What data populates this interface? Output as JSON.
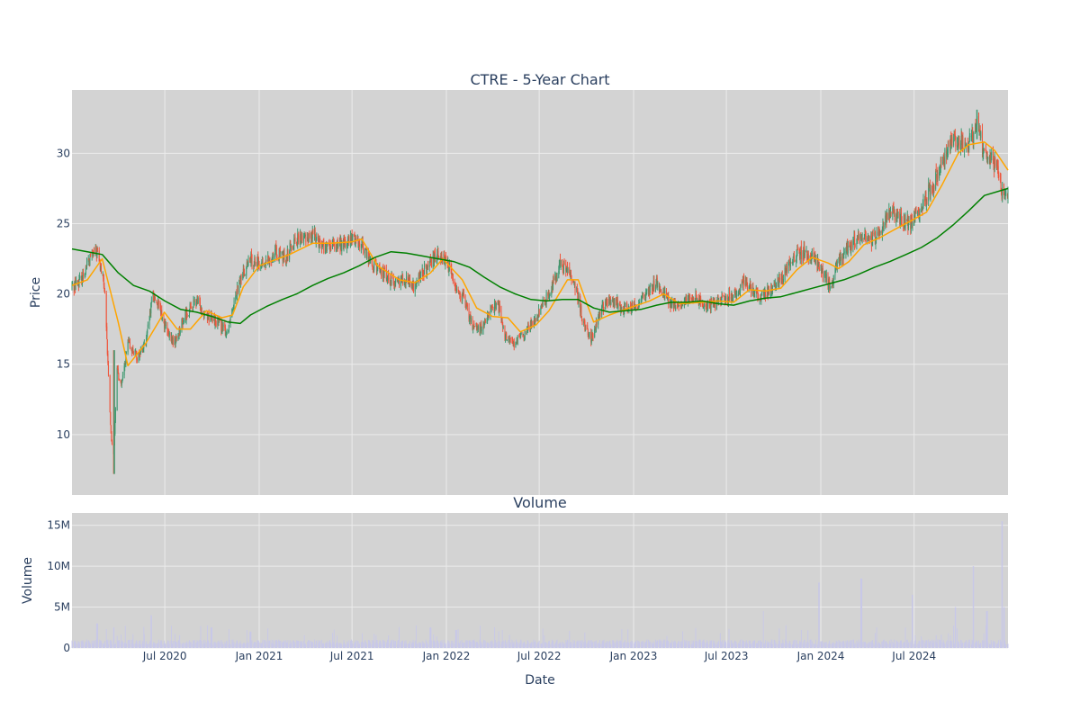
{
  "chart_data": [
    {
      "type": "candlestick",
      "title": "CTRE - 5-Year Chart",
      "ylabel": "Price",
      "x_range": [
        "2020-01-02",
        "2024-12-31"
      ],
      "ylim": [
        5.7,
        34.5
      ],
      "y_ticks": [
        10,
        15,
        20,
        25,
        30
      ],
      "y_tick_labels": [
        "10",
        "15",
        "20",
        "25",
        "30"
      ],
      "grid": true,
      "colors": {
        "increasing": "#3d9970",
        "decreasing": "#ef553b",
        "ma_short": "#ffa500",
        "ma_long": "#008000",
        "plot_bg": "#d3d3d3",
        "grid": "#e6e6e6"
      },
      "price_anchors": [
        [
          "2020-01-02",
          20.5
        ],
        [
          "2020-01-20",
          21.0
        ],
        [
          "2020-02-05",
          22.5
        ],
        [
          "2020-02-20",
          23.0
        ],
        [
          "2020-03-05",
          20.5
        ],
        [
          "2020-03-12",
          15.0
        ],
        [
          "2020-03-18",
          10.0
        ],
        [
          "2020-03-23",
          8.5
        ],
        [
          "2020-03-30",
          14.5
        ],
        [
          "2020-04-08",
          13.5
        ],
        [
          "2020-04-20",
          16.5
        ],
        [
          "2020-05-08",
          15.5
        ],
        [
          "2020-05-25",
          16.5
        ],
        [
          "2020-06-08",
          20.0
        ],
        [
          "2020-06-20",
          19.0
        ],
        [
          "2020-07-08",
          17.0
        ],
        [
          "2020-07-20",
          16.5
        ],
        [
          "2020-08-10",
          18.5
        ],
        [
          "2020-09-01",
          19.5
        ],
        [
          "2020-09-20",
          18.5
        ],
        [
          "2020-10-12",
          18.0
        ],
        [
          "2020-10-30",
          17.2
        ],
        [
          "2020-11-15",
          20.0
        ],
        [
          "2020-12-01",
          21.5
        ],
        [
          "2020-12-15",
          22.5
        ],
        [
          "2021-01-10",
          22.0
        ],
        [
          "2021-02-01",
          23.0
        ],
        [
          "2021-02-20",
          22.5
        ],
        [
          "2021-03-10",
          23.8
        ],
        [
          "2021-04-01",
          24.0
        ],
        [
          "2021-04-20",
          24.2
        ],
        [
          "2021-05-10",
          23.2
        ],
        [
          "2021-06-01",
          23.5
        ],
        [
          "2021-06-20",
          23.6
        ],
        [
          "2021-07-05",
          24.0
        ],
        [
          "2021-07-20",
          23.5
        ],
        [
          "2021-08-10",
          22.0
        ],
        [
          "2021-09-01",
          21.5
        ],
        [
          "2021-09-20",
          20.8
        ],
        [
          "2021-10-10",
          21.2
        ],
        [
          "2021-10-30",
          20.5
        ],
        [
          "2021-11-15",
          21.5
        ],
        [
          "2021-12-01",
          22.0
        ],
        [
          "2021-12-15",
          23.0
        ],
        [
          "2022-01-05",
          22.0
        ],
        [
          "2022-01-20",
          20.5
        ],
        [
          "2022-02-05",
          19.5
        ],
        [
          "2022-02-20",
          17.8
        ],
        [
          "2022-03-10",
          17.5
        ],
        [
          "2022-03-25",
          18.5
        ],
        [
          "2022-04-10",
          19.5
        ],
        [
          "2022-04-25",
          17.0
        ],
        [
          "2022-05-12",
          16.5
        ],
        [
          "2022-05-30",
          17.0
        ],
        [
          "2022-06-15",
          17.8
        ],
        [
          "2022-07-05",
          19.0
        ],
        [
          "2022-07-25",
          20.5
        ],
        [
          "2022-08-10",
          22.0
        ],
        [
          "2022-08-25",
          21.8
        ],
        [
          "2022-09-10",
          20.5
        ],
        [
          "2022-09-25",
          18.0
        ],
        [
          "2022-10-10",
          16.8
        ],
        [
          "2022-10-25",
          18.5
        ],
        [
          "2022-11-10",
          19.5
        ],
        [
          "2022-11-30",
          19.3
        ],
        [
          "2022-12-15",
          19.0
        ],
        [
          "2023-01-10",
          19.2
        ],
        [
          "2023-02-01",
          20.3
        ],
        [
          "2023-02-15",
          20.8
        ],
        [
          "2023-03-10",
          19.5
        ],
        [
          "2023-03-25",
          19.0
        ],
        [
          "2023-04-15",
          19.5
        ],
        [
          "2023-05-01",
          19.8
        ],
        [
          "2023-05-20",
          19.0
        ],
        [
          "2023-06-05",
          19.3
        ],
        [
          "2023-06-25",
          19.6
        ],
        [
          "2023-07-20",
          20.0
        ],
        [
          "2023-08-05",
          21.0
        ],
        [
          "2023-08-20",
          20.2
        ],
        [
          "2023-09-10",
          19.8
        ],
        [
          "2023-09-30",
          20.5
        ],
        [
          "2023-10-15",
          21.0
        ],
        [
          "2023-10-30",
          22.0
        ],
        [
          "2023-11-15",
          22.8
        ],
        [
          "2023-12-01",
          23.0
        ],
        [
          "2023-12-15",
          22.6
        ],
        [
          "2024-01-05",
          21.5
        ],
        [
          "2024-01-20",
          20.5
        ],
        [
          "2024-02-01",
          22.0
        ],
        [
          "2024-02-20",
          23.0
        ],
        [
          "2024-03-10",
          24.0
        ],
        [
          "2024-03-25",
          24.2
        ],
        [
          "2024-04-10",
          23.7
        ],
        [
          "2024-04-25",
          24.5
        ],
        [
          "2024-05-10",
          25.5
        ],
        [
          "2024-05-25",
          25.7
        ],
        [
          "2024-06-10",
          25.2
        ],
        [
          "2024-06-25",
          25.0
        ],
        [
          "2024-07-10",
          25.8
        ],
        [
          "2024-07-25",
          27.0
        ],
        [
          "2024-08-10",
          28.0
        ],
        [
          "2024-08-25",
          29.5
        ],
        [
          "2024-09-10",
          30.8
        ],
        [
          "2024-09-25",
          30.8
        ],
        [
          "2024-10-10",
          30.5
        ],
        [
          "2024-10-25",
          31.2
        ],
        [
          "2024-11-01",
          32.3
        ],
        [
          "2024-11-10",
          30.5
        ],
        [
          "2024-11-20",
          30.0
        ],
        [
          "2024-12-01",
          29.5
        ],
        [
          "2024-12-12",
          28.5
        ],
        [
          "2024-12-20",
          27.0
        ],
        [
          "2024-12-31",
          27.0
        ]
      ],
      "wick_extremes": [
        {
          "date": "2020-03-24",
          "high": 16.0,
          "low": 7.2
        },
        {
          "date": "2024-11-01",
          "high": 33.1,
          "low": 31.0
        }
      ],
      "ma_short_anchors": [
        [
          "2020-01-02",
          20.6
        ],
        [
          "2020-02-01",
          21.0
        ],
        [
          "2020-03-01",
          22.5
        ],
        [
          "2020-04-01",
          18.0
        ],
        [
          "2020-04-20",
          14.9
        ],
        [
          "2020-05-25",
          16.5
        ],
        [
          "2020-06-30",
          18.7
        ],
        [
          "2020-07-25",
          17.5
        ],
        [
          "2020-08-20",
          17.5
        ],
        [
          "2020-09-20",
          18.8
        ],
        [
          "2020-10-20",
          18.3
        ],
        [
          "2020-11-10",
          18.5
        ],
        [
          "2020-12-01",
          20.5
        ],
        [
          "2021-01-01",
          22.0
        ],
        [
          "2021-03-01",
          22.8
        ],
        [
          "2021-04-15",
          23.6
        ],
        [
          "2021-05-20",
          23.6
        ],
        [
          "2021-06-30",
          23.7
        ],
        [
          "2021-07-20",
          23.9
        ],
        [
          "2021-08-20",
          22.0
        ],
        [
          "2021-10-01",
          21.0
        ],
        [
          "2021-11-01",
          20.8
        ],
        [
          "2021-12-01",
          21.5
        ],
        [
          "2021-12-25",
          22.5
        ],
        [
          "2022-02-01",
          21.0
        ],
        [
          "2022-03-01",
          19.0
        ],
        [
          "2022-04-01",
          18.4
        ],
        [
          "2022-05-01",
          18.3
        ],
        [
          "2022-05-25",
          17.3
        ],
        [
          "2022-06-25",
          17.8
        ],
        [
          "2022-07-20",
          18.8
        ],
        [
          "2022-08-25",
          21.0
        ],
        [
          "2022-09-15",
          21.0
        ],
        [
          "2022-10-15",
          18.0
        ],
        [
          "2022-11-15",
          18.5
        ],
        [
          "2022-12-15",
          18.9
        ],
        [
          "2023-02-01",
          19.5
        ],
        [
          "2023-03-01",
          20.0
        ],
        [
          "2023-04-01",
          19.3
        ],
        [
          "2023-05-15",
          19.4
        ],
        [
          "2023-06-15",
          19.5
        ],
        [
          "2023-07-15",
          19.4
        ],
        [
          "2023-08-15",
          20.3
        ],
        [
          "2023-09-15",
          20.2
        ],
        [
          "2023-10-15",
          20.4
        ],
        [
          "2023-11-15",
          21.7
        ],
        [
          "2023-12-15",
          22.6
        ],
        [
          "2024-01-15",
          22.2
        ],
        [
          "2024-02-05",
          21.8
        ],
        [
          "2024-02-25",
          22.3
        ],
        [
          "2024-03-25",
          23.5
        ],
        [
          "2024-04-25",
          24.0
        ],
        [
          "2024-05-25",
          24.6
        ],
        [
          "2024-06-25",
          25.2
        ],
        [
          "2024-07-25",
          25.8
        ],
        [
          "2024-08-25",
          27.8
        ],
        [
          "2024-09-25",
          30.0
        ],
        [
          "2024-10-15",
          30.6
        ],
        [
          "2024-11-15",
          30.8
        ],
        [
          "2024-12-05",
          30.2
        ],
        [
          "2024-12-31",
          28.8
        ]
      ],
      "ma_long_anchors": [
        [
          "2020-01-02",
          23.2
        ],
        [
          "2020-02-01",
          23.0
        ],
        [
          "2020-03-01",
          22.8
        ],
        [
          "2020-04-01",
          21.5
        ],
        [
          "2020-05-01",
          20.6
        ],
        [
          "2020-06-01",
          20.2
        ],
        [
          "2020-07-01",
          19.5
        ],
        [
          "2020-08-01",
          18.9
        ],
        [
          "2020-09-01",
          18.7
        ],
        [
          "2020-10-01",
          18.4
        ],
        [
          "2020-11-01",
          18.0
        ],
        [
          "2020-11-25",
          17.9
        ],
        [
          "2020-12-15",
          18.5
        ],
        [
          "2021-01-15",
          19.1
        ],
        [
          "2021-02-15",
          19.6
        ],
        [
          "2021-03-15",
          20.0
        ],
        [
          "2021-04-15",
          20.6
        ],
        [
          "2021-05-15",
          21.1
        ],
        [
          "2021-06-15",
          21.5
        ],
        [
          "2021-07-15",
          22.0
        ],
        [
          "2021-08-15",
          22.6
        ],
        [
          "2021-09-15",
          23.0
        ],
        [
          "2021-10-15",
          22.9
        ],
        [
          "2021-11-15",
          22.7
        ],
        [
          "2021-12-15",
          22.5
        ],
        [
          "2022-01-15",
          22.3
        ],
        [
          "2022-02-15",
          21.9
        ],
        [
          "2022-03-15",
          21.2
        ],
        [
          "2022-04-15",
          20.5
        ],
        [
          "2022-05-15",
          20.0
        ],
        [
          "2022-06-15",
          19.6
        ],
        [
          "2022-07-15",
          19.5
        ],
        [
          "2022-08-15",
          19.6
        ],
        [
          "2022-09-15",
          19.6
        ],
        [
          "2022-10-15",
          19.0
        ],
        [
          "2022-11-15",
          18.7
        ],
        [
          "2022-12-15",
          18.8
        ],
        [
          "2023-01-15",
          18.9
        ],
        [
          "2023-02-15",
          19.2
        ],
        [
          "2023-03-15",
          19.4
        ],
        [
          "2023-04-15",
          19.4
        ],
        [
          "2023-05-15",
          19.5
        ],
        [
          "2023-06-15",
          19.3
        ],
        [
          "2023-07-15",
          19.2
        ],
        [
          "2023-08-15",
          19.5
        ],
        [
          "2023-09-15",
          19.7
        ],
        [
          "2023-10-15",
          19.8
        ],
        [
          "2023-11-15",
          20.1
        ],
        [
          "2023-12-15",
          20.4
        ],
        [
          "2024-01-15",
          20.7
        ],
        [
          "2024-02-15",
          21.0
        ],
        [
          "2024-03-15",
          21.4
        ],
        [
          "2024-04-15",
          21.9
        ],
        [
          "2024-05-15",
          22.3
        ],
        [
          "2024-06-15",
          22.8
        ],
        [
          "2024-07-15",
          23.3
        ],
        [
          "2024-08-15",
          24.0
        ],
        [
          "2024-09-15",
          24.9
        ],
        [
          "2024-10-15",
          25.9
        ],
        [
          "2024-11-15",
          27.0
        ],
        [
          "2024-12-31",
          27.5
        ]
      ]
    },
    {
      "type": "bar",
      "title": "Volume",
      "ylabel": "Volume",
      "xlabel": "Date",
      "x_range": [
        "2020-01-02",
        "2024-12-31"
      ],
      "ylim": [
        0,
        16500000
      ],
      "y_ticks": [
        0,
        5000000,
        10000000,
        15000000
      ],
      "y_tick_labels": [
        "0",
        "5M",
        "10M",
        "15M"
      ],
      "x_ticks": [
        "2020-07-01",
        "2021-01-01",
        "2021-07-01",
        "2022-01-01",
        "2022-07-01",
        "2023-01-01",
        "2023-07-01",
        "2024-01-01",
        "2024-07-01"
      ],
      "x_tick_labels": [
        "Jul 2020",
        "Jan 2021",
        "Jul 2021",
        "Jan 2022",
        "Jul 2022",
        "Jan 2023",
        "Jul 2023",
        "Jan 2024",
        "Jul 2024"
      ],
      "grid": true,
      "colors": {
        "bar": "#c8c8e8"
      },
      "baseline_volume": 700000,
      "spikes": [
        [
          "2020-02-20",
          3000000
        ],
        [
          "2020-03-23",
          2500000
        ],
        [
          "2020-06-05",
          4000000
        ],
        [
          "2020-09-30",
          2500000
        ],
        [
          "2020-12-15",
          2000000
        ],
        [
          "2021-12-01",
          2500000
        ],
        [
          "2022-01-20",
          2200000
        ],
        [
          "2022-12-10",
          2300000
        ],
        [
          "2023-09-10",
          4500000
        ],
        [
          "2023-11-25",
          2200000
        ],
        [
          "2023-12-29",
          8000000
        ],
        [
          "2024-03-20",
          8500000
        ],
        [
          "2024-04-20",
          2500000
        ],
        [
          "2024-06-15",
          2500000
        ],
        [
          "2024-06-28",
          6500000
        ],
        [
          "2024-09-20",
          5000000
        ],
        [
          "2024-10-25",
          10000000
        ],
        [
          "2024-11-20",
          4500000
        ],
        [
          "2024-12-20",
          15500000
        ],
        [
          "2024-12-23",
          5000000
        ]
      ]
    }
  ]
}
